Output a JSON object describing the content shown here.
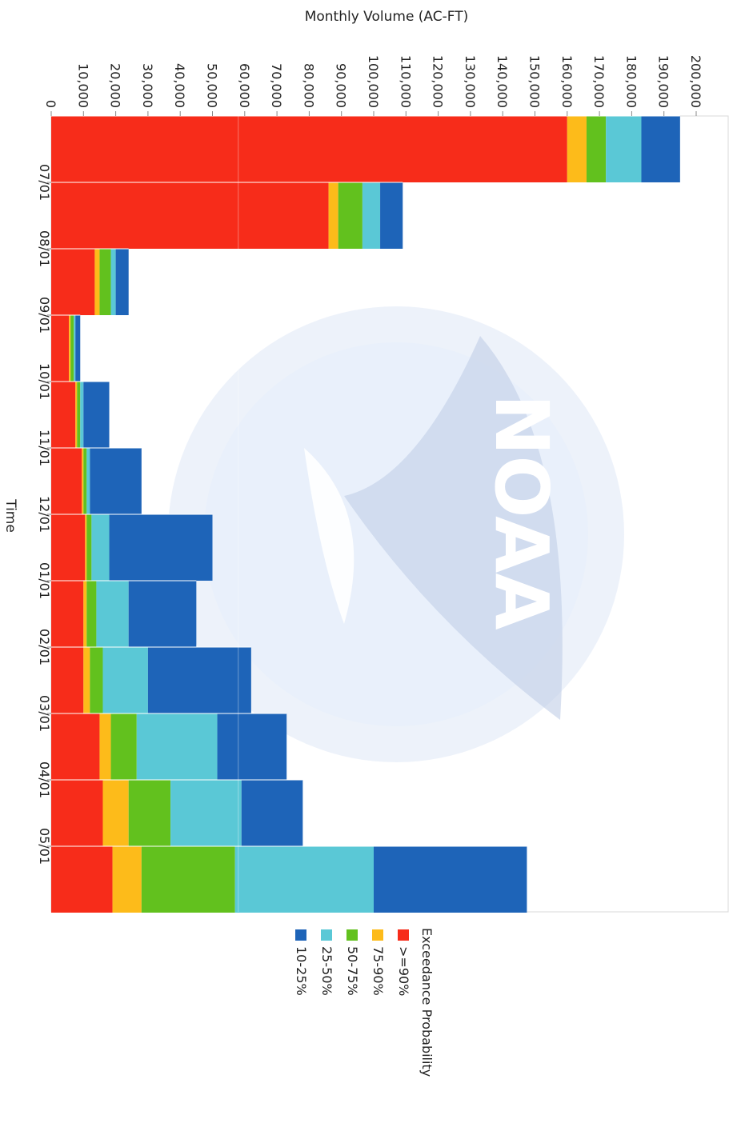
{
  "chart_data": {
    "type": "bar",
    "stacked": true,
    "rotated": "90deg-clockwise",
    "categories": [
      "07/01",
      "08/01",
      "09/01",
      "10/01",
      "11/01",
      "12/01",
      "01/01",
      "02/01",
      "03/01",
      "04/01",
      "05/01",
      ""
    ],
    "tick_labels": [
      "07/01",
      "08/01",
      "09/01",
      "10/01",
      "11/01",
      "12/01",
      "01/01",
      "02/01",
      "03/01",
      "04/01",
      "05/01"
    ],
    "series": [
      {
        "name": ">=90%",
        "color": "#f72c1a",
        "values": [
          160000,
          86000,
          13500,
          5500,
          7500,
          9500,
          10500,
          10000,
          10000,
          15000,
          16000,
          19000
        ]
      },
      {
        "name": "75-90%",
        "color": "#fdbb1a",
        "values": [
          6000,
          3000,
          1500,
          500,
          500,
          500,
          500,
          1000,
          2000,
          3500,
          8000,
          9000
        ]
      },
      {
        "name": "50-75%",
        "color": "#62c11e",
        "values": [
          6000,
          7500,
          3500,
          1000,
          1000,
          1000,
          1500,
          3000,
          4000,
          8000,
          13000,
          29000
        ]
      },
      {
        "name": "25-50%",
        "color": "#5ac8d6",
        "values": [
          11000,
          5500,
          1500,
          500,
          1000,
          1000,
          5500,
          10000,
          14000,
          25000,
          22000,
          43000
        ]
      },
      {
        "name": "10-25%",
        "color": "#1e64b8",
        "values": [
          12000,
          7000,
          4000,
          1500,
          8000,
          16000,
          32000,
          21000,
          32000,
          21500,
          19000,
          47500
        ]
      }
    ],
    "xlabel": "Time",
    "ylabel": "Monthly Volume (AC-FT)",
    "ylim": [
      0,
      205000
    ],
    "yticks": [
      0,
      10000,
      20000,
      30000,
      40000,
      50000,
      60000,
      70000,
      80000,
      90000,
      100000,
      110000,
      120000,
      130000,
      140000,
      150000,
      160000,
      170000,
      180000,
      190000,
      200000
    ],
    "ytick_labels": [
      "0",
      "10,000",
      "20,000",
      "30,000",
      "40,000",
      "50,000",
      "60,000",
      "70,000",
      "80,000",
      "90,000",
      "100,000",
      "110,000",
      "120,000",
      "130,000",
      "140,000",
      "150,000",
      "160,000",
      "170,000",
      "180,000",
      "190,000",
      "200,000"
    ],
    "legend": {
      "title": "Exceedance Probability",
      "placement": "bottom"
    },
    "grid": false,
    "watermark": "NOAA"
  }
}
